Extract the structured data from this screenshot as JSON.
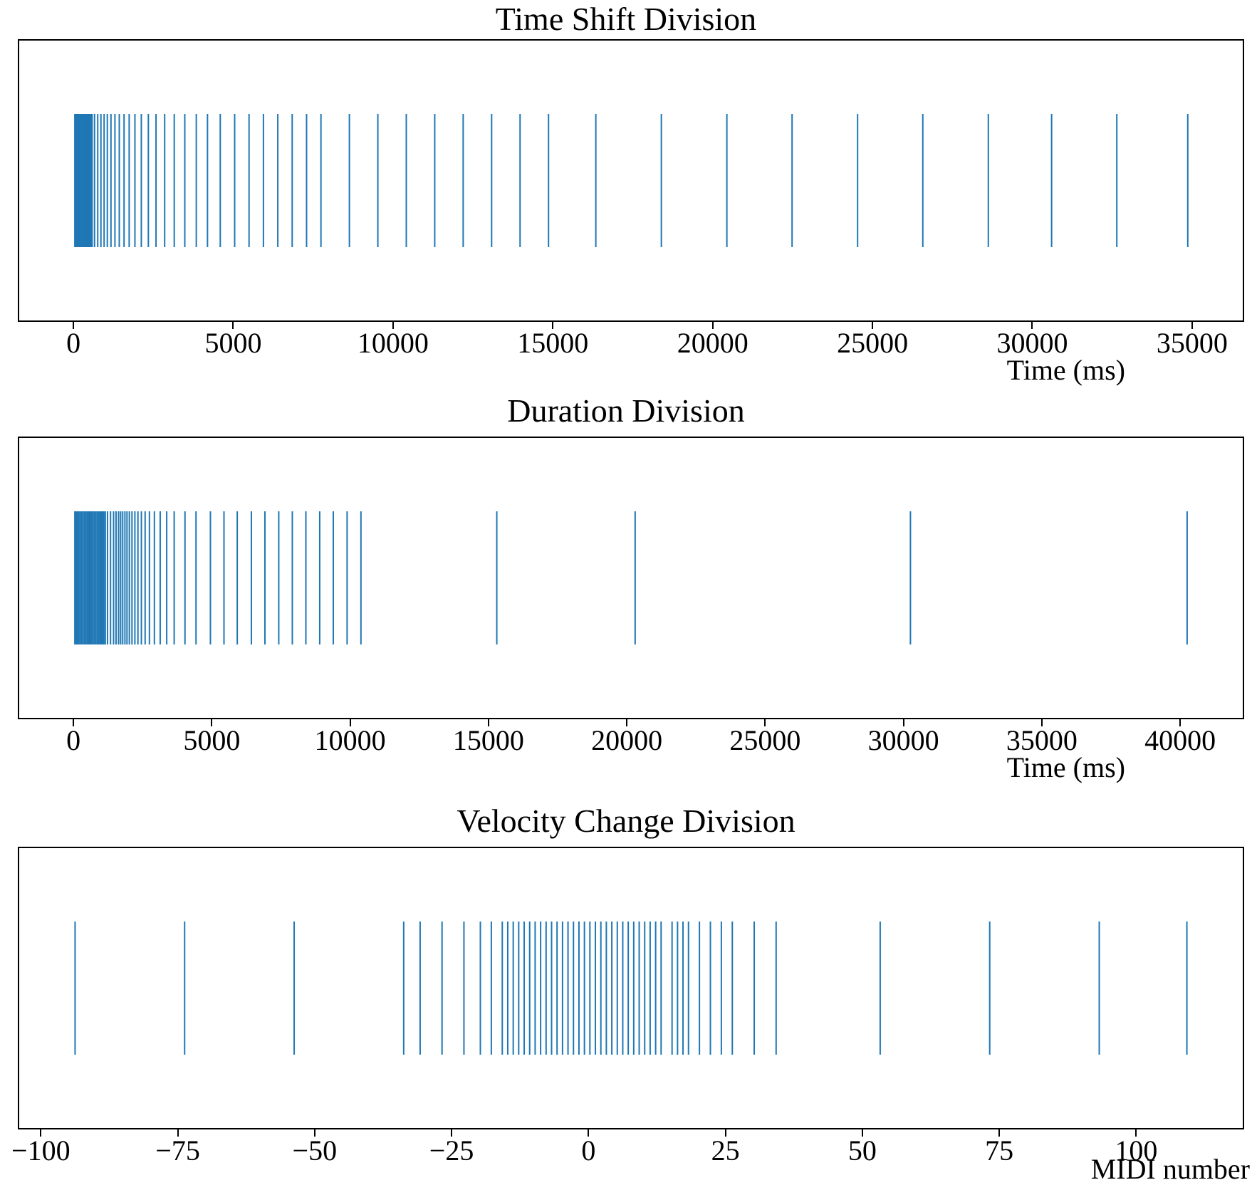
{
  "figure": {
    "background_color": "#ffffff",
    "spine_color": "#000000",
    "text_color": "#000000",
    "event_line_color": "#1f77b4"
  },
  "chart_data": [
    {
      "type": "event",
      "title": "Time Shift Division",
      "xlabel": "Time (ms)",
      "xticks": [
        0,
        5000,
        10000,
        15000,
        20000,
        25000,
        30000,
        35000
      ],
      "xtick_labels": [
        "0",
        "5000",
        "10000",
        "15000",
        "20000",
        "25000",
        "30000",
        "35000"
      ],
      "xlim": [
        -1740,
        36540
      ],
      "color": "#1f77b4",
      "values": [
        0,
        30,
        60,
        90,
        120,
        150,
        180,
        210,
        240,
        270,
        300,
        330,
        360,
        390,
        420,
        450,
        480,
        510,
        540,
        616,
        716,
        816,
        916,
        1016,
        1130,
        1255,
        1390,
        1540,
        1700,
        1880,
        2080,
        2300,
        2540,
        2810,
        3110,
        3440,
        3800,
        4150,
        4550,
        5000,
        5450,
        5900,
        6350,
        6800,
        7250,
        7700,
        8590,
        9480,
        10370,
        11260,
        12150,
        13040,
        13930,
        14820,
        16300,
        18350,
        20400,
        22440,
        24490,
        26530,
        28580,
        30560,
        32600,
        34820
      ]
    },
    {
      "type": "event",
      "title": "Duration Division",
      "xlabel": "Time (ms)",
      "xticks": [
        0,
        5000,
        10000,
        15000,
        20000,
        25000,
        30000,
        35000,
        40000
      ],
      "xtick_labels": [
        "0",
        "5000",
        "10000",
        "15000",
        "20000",
        "25000",
        "30000",
        "35000",
        "40000"
      ],
      "xlim": [
        -2010,
        42210
      ],
      "color": "#1f77b4",
      "values": [
        0,
        50,
        100,
        150,
        200,
        250,
        300,
        350,
        400,
        450,
        500,
        550,
        600,
        650,
        700,
        750,
        800,
        850,
        900,
        950,
        1000,
        1050,
        1100,
        1180,
        1290,
        1400,
        1490,
        1580,
        1655,
        1730,
        1810,
        1885,
        1970,
        2065,
        2170,
        2280,
        2405,
        2540,
        2695,
        2875,
        3085,
        3320,
        3590,
        3980,
        4380,
        4900,
        5390,
        5870,
        6380,
        6870,
        7370,
        7860,
        8350,
        8850,
        9340,
        9840,
        10340,
        15250,
        20250,
        30200,
        40200
      ]
    },
    {
      "type": "event",
      "title": "Velocity Change Division",
      "xlabel": "MIDI number",
      "xticks": [
        -100,
        -75,
        -50,
        -25,
        0,
        25,
        50,
        75,
        100
      ],
      "xtick_labels": [
        "−100",
        "−75",
        "−50",
        "−25",
        "0",
        "25",
        "50",
        "75",
        "100"
      ],
      "xlim": [
        -104.2,
        119.2
      ],
      "color": "#1f77b4",
      "values": [
        -94,
        -74,
        -54,
        -34,
        -31,
        -27,
        -23,
        -20,
        -18,
        -16,
        -15,
        -14,
        -13,
        -12,
        -11,
        -10,
        -9,
        -8,
        -7,
        -6,
        -5,
        -4,
        -3,
        -2,
        -1,
        0,
        1,
        2,
        3,
        4,
        5,
        6,
        7,
        8,
        9,
        10,
        11,
        12,
        13,
        15,
        16,
        17,
        18,
        20,
        22,
        24,
        26,
        30,
        34,
        53,
        73,
        93,
        109
      ]
    }
  ]
}
